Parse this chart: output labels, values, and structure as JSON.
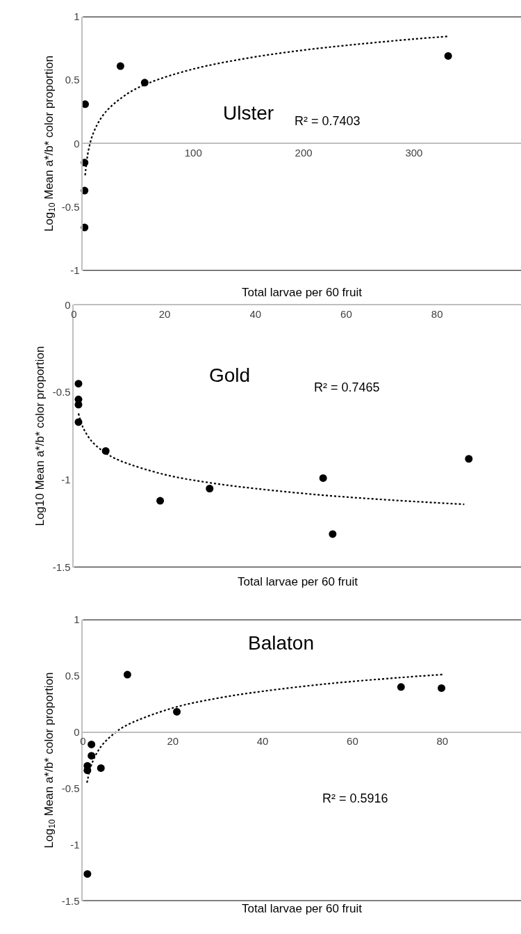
{
  "chart_data": [
    {
      "type": "scatter",
      "xlabel": "Total larvae per 60 fruit",
      "ylabel": "Log$_{10}$ Mean a*/b* color proportion",
      "annotations": [
        "Ulster",
        "R² = 0.7403"
      ],
      "marker": "circle",
      "xlim": [
        0,
        397
      ],
      "xticks": [
        100,
        200,
        300
      ],
      "ylim": [
        -1,
        1
      ],
      "yticks": [
        -1,
        -0.5,
        0,
        0.5,
        1
      ],
      "series": [
        {
          "color": "#000000",
          "x": [
            2,
            34,
            56,
            331,
            1.5,
            1.5,
            1.5
          ],
          "values": [
            0.31,
            0.61,
            0.48,
            0.69,
            -0.15,
            -0.37,
            -0.66
          ]
        },
        {
          "type": "line",
          "color": "#000000",
          "line_style": "dotted",
          "marker": "none",
          "x": [
            2,
            5,
            10,
            20,
            40,
            60,
            100,
            150,
            200,
            250,
            300,
            331
          ],
          "values": [
            -0.25,
            -0.054,
            0.095,
            0.243,
            0.391,
            0.478,
            0.587,
            0.674,
            0.736,
            0.783,
            0.823,
            0.844
          ]
        }
      ]
    },
    {
      "type": "scatter",
      "xlabel": "Total larvae per 60 fruit",
      "ylabel": "Log10 Mean a*/b* color proportion",
      "annotations": [
        "Gold",
        "R² = 0.7465"
      ],
      "marker": "circle",
      "xlim": [
        0,
        98.5
      ],
      "xticks": [
        0,
        20,
        40,
        60,
        80
      ],
      "ylim": [
        -1.5,
        0
      ],
      "yticks": [
        -1.5,
        -1,
        -0.5,
        0
      ],
      "series": [
        {
          "color": "#000000",
          "x": [
            1,
            1,
            1,
            1,
            7,
            19,
            29.9,
            54.9,
            57,
            87
          ],
          "values": [
            -0.45,
            -0.54,
            -0.57,
            -0.67,
            -0.835,
            -1.12,
            -1.05,
            -0.99,
            -1.31,
            -0.88
          ]
        },
        {
          "type": "line",
          "color": "#000000",
          "line_style": "dotted",
          "marker": "none",
          "x": [
            1,
            2,
            4,
            7,
            10,
            20,
            30,
            40,
            55,
            70,
            86
          ],
          "values": [
            -0.62,
            -0.701,
            -0.782,
            -0.847,
            -0.889,
            -0.97,
            -1.017,
            -1.05,
            -1.088,
            -1.116,
            -1.14
          ]
        }
      ]
    },
    {
      "type": "scatter",
      "xlabel": "Total larvae per 60 fruit",
      "ylabel": "Log$_{10}$ Mean a*/b* color proportion",
      "annotations": [
        "Balaton",
        "R² = 0.5916"
      ],
      "marker": "circle",
      "xlim": [
        0,
        97.5
      ],
      "xticks": [
        0,
        20,
        40,
        60,
        80
      ],
      "ylim": [
        -1.5,
        1
      ],
      "yticks": [
        -1.5,
        -1,
        -0.5,
        0,
        0.5,
        1
      ],
      "series": [
        {
          "color": "#000000",
          "x": [
            9.9,
            20.9,
            70.8,
            79.8,
            1.9,
            1.9,
            1,
            1,
            4,
            1
          ],
          "values": [
            0.51,
            0.18,
            0.4,
            0.39,
            -0.11,
            -0.21,
            -0.3,
            -0.34,
            -0.32,
            -1.26
          ]
        },
        {
          "type": "line",
          "color": "#000000",
          "line_style": "dotted",
          "marker": "none",
          "x": [
            0.9,
            2,
            4,
            7,
            10,
            20,
            30,
            40,
            55,
            70,
            80
          ],
          "values": [
            -0.45,
            -0.279,
            -0.13,
            -0.011,
            0.066,
            0.214,
            0.301,
            0.362,
            0.431,
            0.482,
            0.511
          ]
        }
      ]
    }
  ]
}
